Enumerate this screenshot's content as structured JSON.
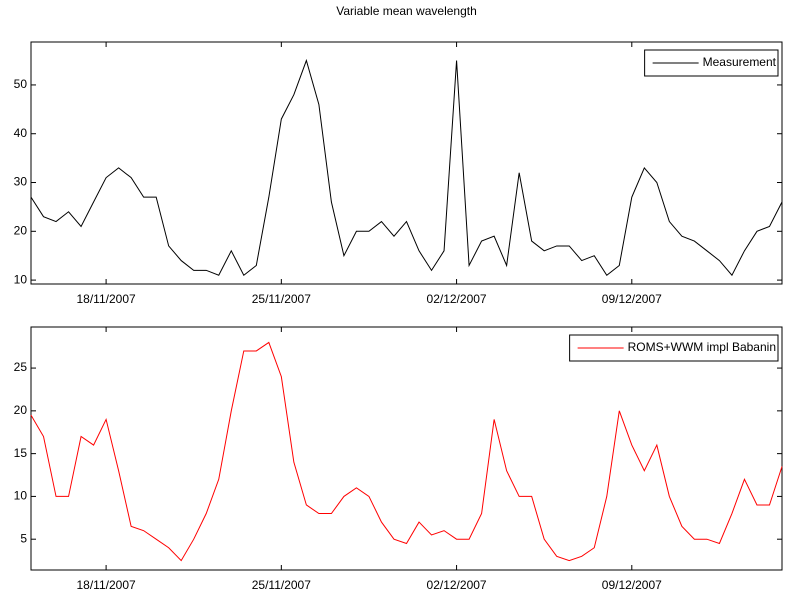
{
  "chart_data": [
    {
      "type": "line",
      "title": "Variable mean wavelength",
      "x": [
        733361,
        733361.5,
        733362,
        733362.5,
        733363,
        733363.5,
        733364,
        733364.5,
        733365,
        733365.5,
        733366,
        733366.5,
        733367,
        733367.5,
        733368,
        733368.5,
        733369,
        733369.5,
        733370,
        733370.5,
        733371,
        733371.5,
        733372,
        733372.5,
        733373,
        733373.5,
        733374,
        733374.5,
        733375,
        733375.5,
        733376,
        733376.5,
        733377,
        733377.5,
        733378,
        733378.5,
        733379,
        733379.5,
        733380,
        733380.5,
        733381,
        733381.5,
        733382,
        733382.5,
        733383,
        733383.5,
        733384,
        733384.5,
        733385,
        733385.5,
        733386,
        733386.5,
        733387,
        733387.5,
        733388,
        733388.5,
        733389,
        733389.5,
        733390,
        733390.5,
        733391
      ],
      "series": [
        {
          "name": "Measurement",
          "color": "#000000",
          "values": [
            27,
            23,
            22,
            24,
            21,
            26,
            31,
            33,
            31,
            27,
            27,
            17,
            14,
            12,
            12,
            11,
            16,
            11,
            13,
            27,
            43,
            48,
            55,
            46,
            26,
            15,
            20,
            20,
            22,
            19,
            22,
            16,
            12,
            16,
            55,
            13,
            18,
            19,
            13,
            32,
            18,
            16,
            17,
            17,
            14,
            15,
            11,
            13,
            27,
            33,
            30,
            22,
            19,
            18,
            16,
            14,
            11,
            16,
            20,
            21,
            26
          ]
        }
      ],
      "xlim": [
        733361,
        733391
      ],
      "xticks": [
        {
          "value": 733364,
          "label": "18/11/2007"
        },
        {
          "value": 733371,
          "label": "25/11/2007"
        },
        {
          "value": 733378,
          "label": "02/12/2007"
        },
        {
          "value": 733385,
          "label": "09/12/2007"
        }
      ],
      "ylim": [
        9.2,
        58.8
      ],
      "yticks": [
        10,
        20,
        30,
        40,
        50
      ],
      "legend": "upper right",
      "grid": false
    },
    {
      "type": "line",
      "x": [
        733361,
        733361.5,
        733362,
        733362.5,
        733363,
        733363.5,
        733364,
        733364.5,
        733365,
        733365.5,
        733366,
        733366.5,
        733367,
        733367.5,
        733368,
        733368.5,
        733369,
        733369.5,
        733370,
        733370.5,
        733371,
        733371.5,
        733372,
        733372.5,
        733373,
        733373.5,
        733374,
        733374.5,
        733375,
        733375.5,
        733376,
        733376.5,
        733377,
        733377.5,
        733378,
        733378.5,
        733379,
        733379.5,
        733380,
        733380.5,
        733381,
        733381.5,
        733382,
        733382.5,
        733383,
        733383.5,
        733384,
        733384.5,
        733385,
        733385.5,
        733386,
        733386.5,
        733387,
        733387.5,
        733388,
        733388.5,
        733389,
        733389.5,
        733390,
        733390.5,
        733391
      ],
      "series": [
        {
          "name": "ROMS+WWM impl Babanin",
          "color": "#ff0000",
          "values": [
            19.5,
            17,
            10,
            10,
            17,
            16,
            19,
            13,
            6.5,
            6,
            5,
            4,
            2.5,
            5,
            8,
            12,
            20,
            27,
            27,
            28,
            24,
            14,
            9,
            8,
            8,
            10,
            11,
            10,
            7,
            5,
            4.5,
            7,
            5.5,
            6,
            5,
            5,
            8,
            19,
            13,
            10,
            10,
            5,
            3,
            2.5,
            3,
            4,
            10,
            20,
            16,
            13,
            16,
            10,
            6.5,
            5,
            5,
            4.5,
            8,
            12,
            9,
            9,
            13.5
          ]
        }
      ],
      "xlim": [
        733361,
        733391
      ],
      "xticks": [
        {
          "value": 733364,
          "label": "18/11/2007"
        },
        {
          "value": 733371,
          "label": "25/11/2007"
        },
        {
          "value": 733378,
          "label": "02/12/2007"
        },
        {
          "value": 733385,
          "label": "09/12/2007"
        }
      ],
      "ylim": [
        1.4,
        29.8
      ],
      "yticks": [
        5,
        10,
        15,
        20,
        25
      ],
      "legend": "upper right",
      "grid": false
    }
  ]
}
